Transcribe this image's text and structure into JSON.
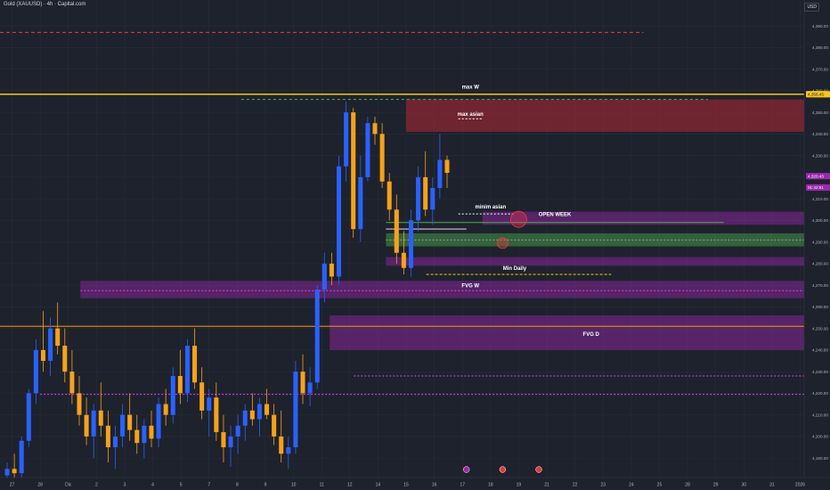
{
  "header": {
    "title": "Gold (XAUUSD) · 4h · Capital.com",
    "currency": "USD"
  },
  "chart_data": {
    "type": "candlestick",
    "ylim": [
      4181,
      4402
    ],
    "xlim": [
      0,
      100
    ],
    "y_ticks": [
      {
        "v": 4390,
        "label": "4,390.00"
      },
      {
        "v": 4380,
        "label": "4,380.00"
      },
      {
        "v": 4370,
        "label": "4,370.00"
      },
      {
        "v": 4360,
        "label": "4,360.00"
      },
      {
        "v": 4350,
        "label": "4,350.00"
      },
      {
        "v": 4340,
        "label": "4,340.00"
      },
      {
        "v": 4330,
        "label": "4,330.00"
      },
      {
        "v": 4320,
        "label": "4,320.00"
      },
      {
        "v": 4310,
        "label": "4,310.00"
      },
      {
        "v": 4300,
        "label": "4,300.00"
      },
      {
        "v": 4290,
        "label": "4,290.00"
      },
      {
        "v": 4280,
        "label": "4,280.00"
      },
      {
        "v": 4270,
        "label": "4,270.00"
      },
      {
        "v": 4260,
        "label": "4,260.00"
      },
      {
        "v": 4250,
        "label": "4,250.00"
      },
      {
        "v": 4240,
        "label": "4,240.00"
      },
      {
        "v": 4230,
        "label": "4,230.00"
      },
      {
        "v": 4220,
        "label": "4,220.00"
      },
      {
        "v": 4210,
        "label": "4,210.00"
      },
      {
        "v": 4200,
        "label": "4,200.00"
      },
      {
        "v": 4190,
        "label": "4,190.00"
      },
      {
        "v": 4180,
        "label": "4,180.00"
      }
    ],
    "x_ticks": [
      {
        "x": 1.5,
        "label": "27"
      },
      {
        "x": 5,
        "label": "28"
      },
      {
        "x": 8.5,
        "label": "Dic"
      },
      {
        "x": 12,
        "label": "2"
      },
      {
        "x": 15.5,
        "label": "3"
      },
      {
        "x": 19,
        "label": "4"
      },
      {
        "x": 22.5,
        "label": "5"
      },
      {
        "x": 26,
        "label": "7"
      },
      {
        "x": 29.5,
        "label": "8"
      },
      {
        "x": 33,
        "label": "9"
      },
      {
        "x": 36.5,
        "label": "10"
      },
      {
        "x": 40,
        "label": "11"
      },
      {
        "x": 43.5,
        "label": "12"
      },
      {
        "x": 47,
        "label": "14"
      },
      {
        "x": 50.5,
        "label": "15"
      },
      {
        "x": 54,
        "label": "16"
      },
      {
        "x": 57.5,
        "label": "17"
      },
      {
        "x": 61,
        "label": "18"
      },
      {
        "x": 64.5,
        "label": "19"
      },
      {
        "x": 68,
        "label": "21"
      },
      {
        "x": 71.5,
        "label": "22"
      },
      {
        "x": 75,
        "label": "23"
      },
      {
        "x": 78.5,
        "label": "24"
      },
      {
        "x": 82,
        "label": "25"
      },
      {
        "x": 85.5,
        "label": "28"
      },
      {
        "x": 89,
        "label": "29"
      },
      {
        "x": 92.5,
        "label": "30"
      },
      {
        "x": 96,
        "label": "31"
      },
      {
        "x": 99.5,
        "label": "2026"
      }
    ],
    "candles": [
      {
        "t": 0,
        "o": 4182,
        "h": 4188,
        "l": 4178,
        "c": 4185
      },
      {
        "t": 1,
        "o": 4185,
        "h": 4192,
        "l": 4181,
        "c": 4183
      },
      {
        "t": 2,
        "o": 4183,
        "h": 4200,
        "l": 4180,
        "c": 4198
      },
      {
        "t": 3,
        "o": 4198,
        "h": 4222,
        "l": 4195,
        "c": 4220
      },
      {
        "t": 4,
        "o": 4220,
        "h": 4245,
        "l": 4215,
        "c": 4240
      },
      {
        "t": 5,
        "o": 4240,
        "h": 4258,
        "l": 4230,
        "c": 4235
      },
      {
        "t": 6,
        "o": 4235,
        "h": 4255,
        "l": 4228,
        "c": 4250
      },
      {
        "t": 7,
        "o": 4250,
        "h": 4262,
        "l": 4238,
        "c": 4242
      },
      {
        "t": 8,
        "o": 4242,
        "h": 4250,
        "l": 4225,
        "c": 4230
      },
      {
        "t": 9,
        "o": 4230,
        "h": 4240,
        "l": 4215,
        "c": 4220
      },
      {
        "t": 10,
        "o": 4220,
        "h": 4228,
        "l": 4205,
        "c": 4210
      },
      {
        "t": 11,
        "o": 4210,
        "h": 4218,
        "l": 4196,
        "c": 4200
      },
      {
        "t": 12,
        "o": 4200,
        "h": 4215,
        "l": 4190,
        "c": 4212
      },
      {
        "t": 13,
        "o": 4212,
        "h": 4225,
        "l": 4200,
        "c": 4205
      },
      {
        "t": 14,
        "o": 4205,
        "h": 4212,
        "l": 4188,
        "c": 4195
      },
      {
        "t": 15,
        "o": 4195,
        "h": 4205,
        "l": 4185,
        "c": 4200
      },
      {
        "t": 16,
        "o": 4200,
        "h": 4215,
        "l": 4195,
        "c": 4210
      },
      {
        "t": 17,
        "o": 4210,
        "h": 4220,
        "l": 4198,
        "c": 4203
      },
      {
        "t": 18,
        "o": 4203,
        "h": 4210,
        "l": 4192,
        "c": 4197
      },
      {
        "t": 19,
        "o": 4197,
        "h": 4208,
        "l": 4190,
        "c": 4205
      },
      {
        "t": 20,
        "o": 4205,
        "h": 4212,
        "l": 4195,
        "c": 4199
      },
      {
        "t": 21,
        "o": 4199,
        "h": 4218,
        "l": 4195,
        "c": 4215
      },
      {
        "t": 22,
        "o": 4215,
        "h": 4222,
        "l": 4205,
        "c": 4210
      },
      {
        "t": 23,
        "o": 4210,
        "h": 4232,
        "l": 4206,
        "c": 4228
      },
      {
        "t": 24,
        "o": 4228,
        "h": 4240,
        "l": 4215,
        "c": 4220
      },
      {
        "t": 25,
        "o": 4220,
        "h": 4245,
        "l": 4216,
        "c": 4242
      },
      {
        "t": 26,
        "o": 4242,
        "h": 4250,
        "l": 4222,
        "c": 4225
      },
      {
        "t": 27,
        "o": 4225,
        "h": 4232,
        "l": 4208,
        "c": 4212
      },
      {
        "t": 28,
        "o": 4212,
        "h": 4222,
        "l": 4200,
        "c": 4218
      },
      {
        "t": 29,
        "o": 4218,
        "h": 4225,
        "l": 4198,
        "c": 4202
      },
      {
        "t": 30,
        "o": 4202,
        "h": 4210,
        "l": 4188,
        "c": 4195
      },
      {
        "t": 31,
        "o": 4195,
        "h": 4205,
        "l": 4186,
        "c": 4200
      },
      {
        "t": 32,
        "o": 4200,
        "h": 4210,
        "l": 4192,
        "c": 4205
      },
      {
        "t": 33,
        "o": 4205,
        "h": 4215,
        "l": 4198,
        "c": 4212
      },
      {
        "t": 34,
        "o": 4212,
        "h": 4220,
        "l": 4205,
        "c": 4208
      },
      {
        "t": 35,
        "o": 4208,
        "h": 4218,
        "l": 4200,
        "c": 4215
      },
      {
        "t": 36,
        "o": 4215,
        "h": 4222,
        "l": 4208,
        "c": 4210
      },
      {
        "t": 37,
        "o": 4210,
        "h": 4215,
        "l": 4196,
        "c": 4200
      },
      {
        "t": 38,
        "o": 4200,
        "h": 4212,
        "l": 4188,
        "c": 4192
      },
      {
        "t": 39,
        "o": 4192,
        "h": 4200,
        "l": 4185,
        "c": 4195
      },
      {
        "t": 40,
        "o": 4195,
        "h": 4235,
        "l": 4192,
        "c": 4230
      },
      {
        "t": 41,
        "o": 4230,
        "h": 4238,
        "l": 4215,
        "c": 4220
      },
      {
        "t": 42,
        "o": 4220,
        "h": 4232,
        "l": 4214,
        "c": 4225
      },
      {
        "t": 43,
        "o": 4225,
        "h": 4270,
        "l": 4222,
        "c": 4268
      },
      {
        "t": 44,
        "o": 4268,
        "h": 4285,
        "l": 4262,
        "c": 4280
      },
      {
        "t": 45,
        "o": 4280,
        "h": 4285,
        "l": 4270,
        "c": 4274
      },
      {
        "t": 46,
        "o": 4274,
        "h": 4330,
        "l": 4270,
        "c": 4325
      },
      {
        "t": 47,
        "o": 4325,
        "h": 4355,
        "l": 4318,
        "c": 4350
      },
      {
        "t": 48,
        "o": 4350,
        "h": 4352,
        "l": 4292,
        "c": 4296
      },
      {
        "t": 49,
        "o": 4296,
        "h": 4330,
        "l": 4290,
        "c": 4320
      },
      {
        "t": 50,
        "o": 4320,
        "h": 4348,
        "l": 4318,
        "c": 4345
      },
      {
        "t": 51,
        "o": 4345,
        "h": 4348,
        "l": 4335,
        "c": 4340
      },
      {
        "t": 52,
        "o": 4340,
        "h": 4345,
        "l": 4315,
        "c": 4318
      },
      {
        "t": 53,
        "o": 4318,
        "h": 4322,
        "l": 4300,
        "c": 4305
      },
      {
        "t": 54,
        "o": 4305,
        "h": 4312,
        "l": 4280,
        "c": 4285
      },
      {
        "t": 55,
        "o": 4285,
        "h": 4295,
        "l": 4275,
        "c": 4278
      },
      {
        "t": 56,
        "o": 4278,
        "h": 4305,
        "l": 4274,
        "c": 4300
      },
      {
        "t": 57,
        "o": 4300,
        "h": 4325,
        "l": 4295,
        "c": 4320
      },
      {
        "t": 58,
        "o": 4320,
        "h": 4332,
        "l": 4302,
        "c": 4305
      },
      {
        "t": 59,
        "o": 4305,
        "h": 4320,
        "l": 4298,
        "c": 4315
      },
      {
        "t": 60,
        "o": 4315,
        "h": 4340,
        "l": 4310,
        "c": 4328
      },
      {
        "t": 61,
        "o": 4328,
        "h": 4330,
        "l": 4315,
        "c": 4322
      }
    ],
    "price_markers": [
      {
        "v": 4358.4,
        "label": "4,358.45",
        "bg": "#f5c518",
        "fg": "#131722"
      },
      {
        "v": 4320.5,
        "label": "4,320.43",
        "bg": "#9c27b0",
        "fg": "#ffffff"
      },
      {
        "v": 4315.2,
        "label": "01:42:51",
        "bg": "#9c27b0",
        "fg": "#ffffff"
      }
    ],
    "hlines": [
      {
        "v": 4387,
        "x1": 0,
        "x2": 80,
        "color": "#f23645",
        "dash": "4,3",
        "w": 1
      },
      {
        "v": 4358.4,
        "x1": 0,
        "x2": 100,
        "color": "#f5c518",
        "dash": "",
        "w": 1.4
      },
      {
        "v": 4356,
        "x1": 30,
        "x2": 88,
        "color": "#4caf50",
        "dash": "3,3",
        "w": 1
      },
      {
        "v": 4347,
        "x1": 57,
        "x2": 60,
        "color": "#ffffff",
        "dash": "2,2",
        "w": 1
      },
      {
        "v": 4303,
        "x1": 57,
        "x2": 64,
        "color": "#ffffff",
        "dash": "2,2",
        "w": 1
      },
      {
        "v": 4299,
        "x1": 48,
        "x2": 90,
        "color": "#4caf50",
        "dash": "",
        "w": 1
      },
      {
        "v": 4296,
        "x1": 48,
        "x2": 58,
        "color": "#ffffff",
        "dash": "",
        "w": 0.8
      },
      {
        "v": 4291,
        "x1": 48,
        "x2": 100,
        "color": "#bdbdbd",
        "dash": "2,2",
        "w": 0.8
      },
      {
        "v": 4275,
        "x1": 53,
        "x2": 76,
        "color": "#f5c518",
        "dash": "3,2",
        "w": 1
      },
      {
        "v": 4267.5,
        "x1": 10,
        "x2": 100,
        "color": "#e040fb",
        "dash": "2,2",
        "w": 1
      },
      {
        "v": 4251,
        "x1": 0,
        "x2": 100,
        "color": "#ff9800",
        "dash": "",
        "w": 1
      },
      {
        "v": 4228,
        "x1": 44,
        "x2": 100,
        "color": "#e040fb",
        "dash": "2,2",
        "w": 1
      },
      {
        "v": 4219.5,
        "x1": 5,
        "x2": 100,
        "color": "#e040fb",
        "dash": "2,2",
        "w": 1
      }
    ],
    "zones": [
      {
        "y1": 4356,
        "y2": 4341,
        "x1": 50.5,
        "x2": 100,
        "color": "#b22833",
        "opacity": 0.55
      },
      {
        "y1": 4304,
        "y2": 4298,
        "x1": 60,
        "x2": 100,
        "color": "#9c27b0",
        "opacity": 0.45
      },
      {
        "y1": 4294,
        "y2": 4288,
        "x1": 48,
        "x2": 100,
        "color": "#4caf50",
        "opacity": 0.45
      },
      {
        "y1": 4283,
        "y2": 4279,
        "x1": 48,
        "x2": 100,
        "color": "#9c27b0",
        "opacity": 0.45
      },
      {
        "y1": 4272,
        "y2": 4264,
        "x1": 10,
        "x2": 100,
        "color": "#9c27b0",
        "opacity": 0.45
      },
      {
        "y1": 4256,
        "y2": 4240,
        "x1": 41,
        "x2": 100,
        "color": "#9c27b0",
        "opacity": 0.45
      }
    ],
    "circles": [
      {
        "x": 64.5,
        "v": 4300.5,
        "r": 9,
        "color": "#f23645"
      },
      {
        "x": 62.5,
        "v": 4289.5,
        "r": 6,
        "color": "#f23645"
      }
    ],
    "annotations": [
      {
        "x": 58.5,
        "v": 4361,
        "text": "max W"
      },
      {
        "x": 58.5,
        "v": 4348.5,
        "text": "max asian"
      },
      {
        "x": 61,
        "v": 4305.5,
        "text": "minim asian"
      },
      {
        "x": 69,
        "v": 4302,
        "text": "OPEN WEEK"
      },
      {
        "x": 64,
        "v": 4277,
        "text": "Min Daily"
      },
      {
        "x": 58.5,
        "v": 4269,
        "text": "FVG W"
      },
      {
        "x": 73.5,
        "v": 4246.5,
        "text": "FVG D"
      }
    ],
    "event_icons": [
      {
        "x": 58,
        "color": "#9c27b0"
      },
      {
        "x": 62.5,
        "color": "#e53935"
      },
      {
        "x": 67,
        "color": "#e53935"
      }
    ],
    "colors": {
      "up": "#2962ff",
      "down": "#f7a21b",
      "bg": "#1e222d",
      "grid": "#2a2e39",
      "axis_text": "#b2b5be"
    }
  }
}
